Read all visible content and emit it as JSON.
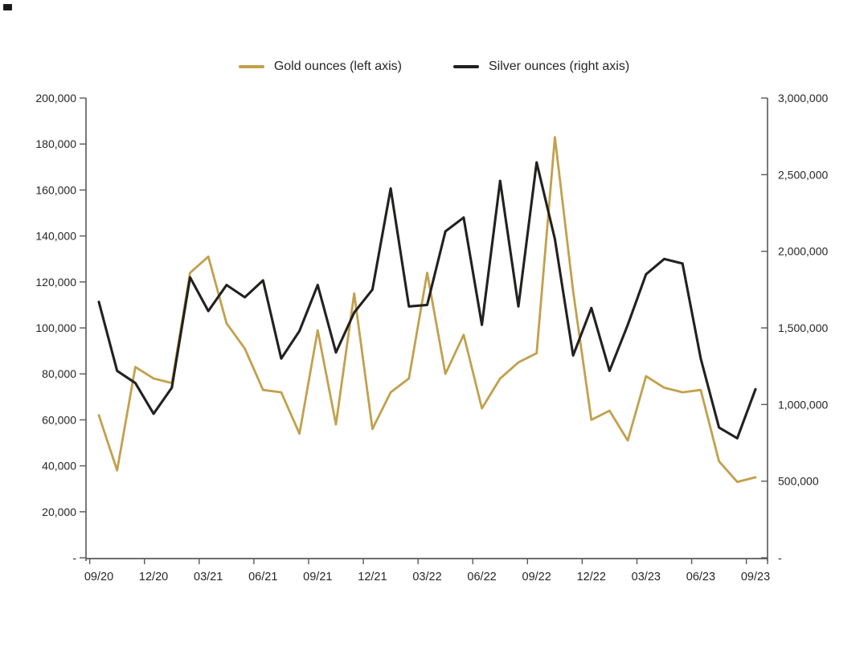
{
  "legend": {
    "items": [
      {
        "label": "Gold ounces (left axis)",
        "color": "#C2A04C"
      },
      {
        "label": "Silver ounces (right axis)",
        "color": "#23211F"
      }
    ]
  },
  "chart_data": {
    "type": "line",
    "x": [
      "09/20",
      "10/20",
      "11/20",
      "12/20",
      "01/21",
      "02/21",
      "03/21",
      "04/21",
      "05/21",
      "06/21",
      "07/21",
      "08/21",
      "09/21",
      "10/21",
      "11/21",
      "12/21",
      "01/22",
      "02/22",
      "03/22",
      "04/22",
      "05/22",
      "06/22",
      "07/22",
      "08/22",
      "09/22",
      "10/22",
      "11/22",
      "12/22",
      "01/23",
      "02/23",
      "03/23",
      "04/23",
      "05/23",
      "06/23",
      "07/23",
      "08/23",
      "09/23"
    ],
    "x_tick_labels": [
      "09/20",
      "12/20",
      "03/21",
      "06/21",
      "09/21",
      "12/21",
      "03/22",
      "06/22",
      "09/22",
      "12/22",
      "03/23",
      "06/23",
      "09/23"
    ],
    "series": [
      {
        "name": "Gold ounces (left axis)",
        "axis": "left",
        "color": "#C2A04C",
        "values": [
          62000,
          38000,
          83000,
          78000,
          76000,
          124000,
          131000,
          102000,
          91000,
          73000,
          72000,
          54000,
          99000,
          58000,
          115000,
          56000,
          72000,
          78000,
          124000,
          80000,
          97000,
          65000,
          78000,
          85000,
          89000,
          183000,
          116000,
          60000,
          64000,
          51000,
          79000,
          74000,
          72000,
          73000,
          42000,
          33000,
          35000
        ]
      },
      {
        "name": "Silver ounces (right axis)",
        "axis": "right",
        "color": "#23211F",
        "values": [
          1670000,
          1220000,
          1140000,
          940000,
          1110000,
          1830000,
          1610000,
          1780000,
          1700000,
          1810000,
          1300000,
          1480000,
          1780000,
          1340000,
          1600000,
          1750000,
          2410000,
          1640000,
          1650000,
          2130000,
          2220000,
          1520000,
          2460000,
          1640000,
          2580000,
          2080000,
          1320000,
          1630000,
          1220000,
          1520000,
          1850000,
          1950000,
          1920000,
          1300000,
          850000,
          780000,
          1100000
        ]
      }
    ],
    "left_axis": {
      "min": 0,
      "max": 200000,
      "step": 20000,
      "labels_top_down": [
        "200,000",
        "180,000",
        "160,000",
        "140,000",
        "120,000",
        "100,000",
        "80,000",
        "60,000",
        "40,000",
        "20,000",
        "-"
      ]
    },
    "right_axis": {
      "min": 0,
      "max": 3000000,
      "step": 500000,
      "labels_top_down": [
        "3,000,000",
        "2,500,000",
        "2,000,000",
        "1,500,000",
        "1,000,000",
        "500,000",
        "-"
      ]
    },
    "grid": false,
    "legend_position": "top"
  }
}
